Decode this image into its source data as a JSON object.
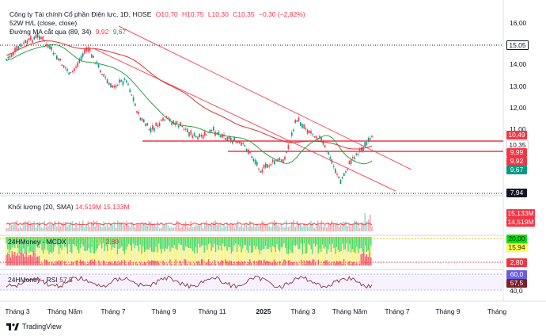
{
  "legend": {
    "title": "Công ty Tài chính Cổ phần Điện lực, 1D, HOSE",
    "ohlc_o": "O10,70",
    "ohlc_h": "H10,75",
    "ohlc_l": "L10,30",
    "ohlc_c": "C10,35",
    "change": "−0,30 (−2,82%)",
    "indicator1": "52W H/L (close, close)",
    "indicator2_name": "Đường MA cắt qua (89, 34)",
    "indicator2_v1": "9,92",
    "indicator2_v2": "9,67"
  },
  "price_axis": {
    "ticks": [
      "16,00",
      "14,00",
      "13,00",
      "12,00",
      "11,00"
    ],
    "tags": {
      "high52": "15,05",
      "last": "10,49",
      "close": "10,35",
      "ma_a": "9,99",
      "ma_b": "9,92",
      "ma_c": "9,67",
      "low52": "7,94"
    }
  },
  "volume": {
    "label": "Khối lượng (20, SMA)",
    "v1": "14,519M",
    "v2": "15,133M",
    "tag1": "15,133M",
    "tag2": "14,519M"
  },
  "mcdx": {
    "label": "24HMoney - MCDX",
    "v1": "20,00",
    "v2": "15,94",
    "v3": "2,80",
    "tag1": "20,00",
    "tag2": "15,94",
    "tag3": "2,80"
  },
  "rsi": {
    "label": "24HMoney - RSI",
    "value": "57,5",
    "tag_top": "60,0",
    "tag_val": "57,5",
    "tag_bottom": "40,0"
  },
  "x_axis": [
    "Tháng 3",
    "Tháng Năm",
    "Tháng 7",
    "Tháng 9",
    "Tháng 11",
    "2025",
    "Tháng 3",
    "Tháng Năm",
    "Tháng 7",
    "Tháng 9",
    "Tháng"
  ],
  "brand": "TradingView",
  "colors": {
    "up": "#089981",
    "down": "#f23645",
    "ma_slow": "#e03131",
    "ma_fast": "#2f9e44",
    "mcdx_green": "#4cd964",
    "mcdx_yellow": "#f7f28a",
    "rsi_line": "#7b1f2a"
  }
}
